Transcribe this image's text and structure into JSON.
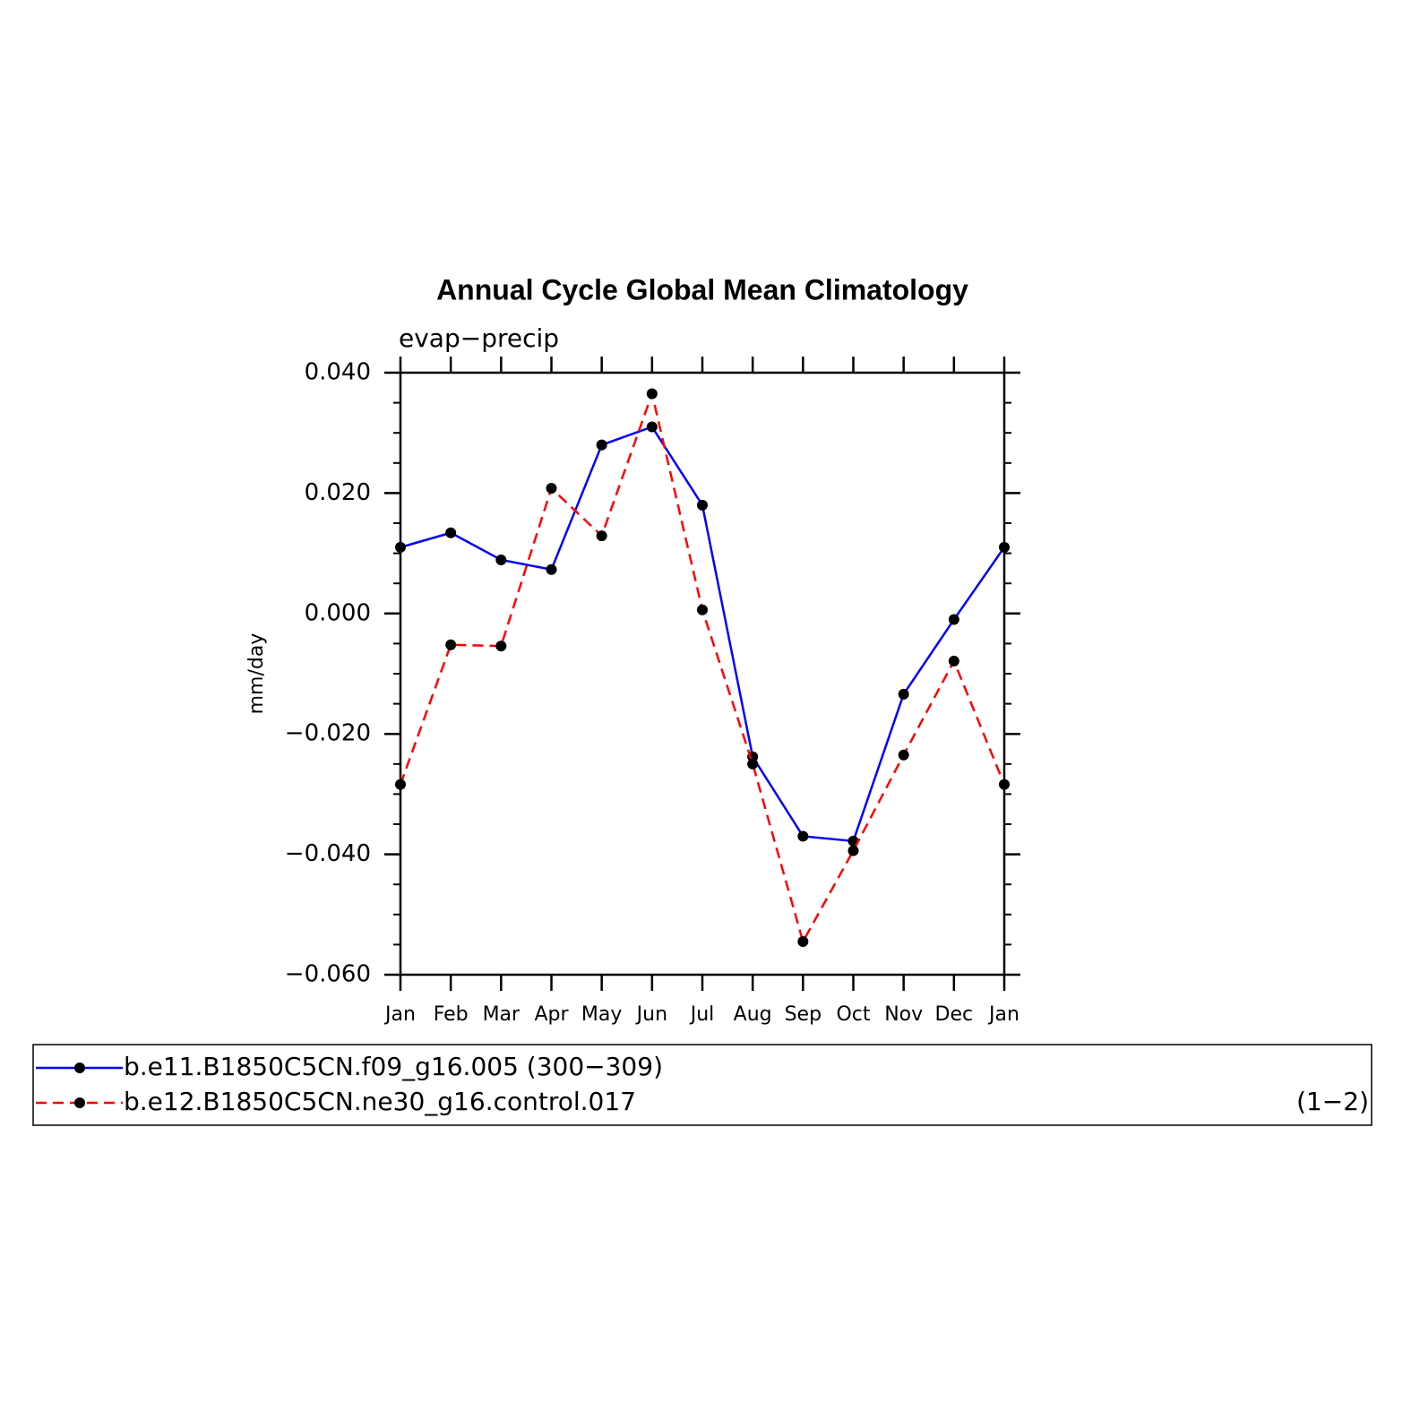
{
  "chart_data": {
    "type": "line",
    "title": "Annual Cycle Global Mean Climatology",
    "subtitle": "evap−precip",
    "y_label": "mm/day",
    "categories": [
      "Jan",
      "Feb",
      "Mar",
      "Apr",
      "May",
      "Jun",
      "Jul",
      "Aug",
      "Sep",
      "Oct",
      "Nov",
      "Dec",
      "Jan"
    ],
    "series": [
      {
        "name": "b.e11.B1850C5CN.f09_g16.005 (300−309)",
        "color": "#0000ff",
        "dash": "solid",
        "values": [
          0.011,
          0.0134,
          0.0089,
          0.0073,
          0.028,
          0.031,
          0.018,
          -0.0238,
          -0.037,
          -0.0378,
          -0.0134,
          -0.001,
          0.011
        ]
      },
      {
        "name": "b.e12.B1850C5CN.ne30_g16.control.017",
        "color": "#ff0000",
        "dash": "dashed",
        "values": [
          -0.0284,
          -0.0052,
          -0.0054,
          0.0208,
          0.0129,
          0.0365,
          0.0006,
          -0.025,
          -0.0545,
          -0.0394,
          -0.0235,
          -0.0079,
          -0.0284
        ]
      }
    ],
    "legend_note": "(1−2)",
    "ylim": [
      -0.06,
      0.04
    ],
    "yticks": [
      {
        "value": -0.06,
        "label": "−0.060"
      },
      {
        "value": -0.04,
        "label": "−0.040"
      },
      {
        "value": -0.02,
        "label": "−0.020"
      },
      {
        "value": 0,
        "label": "0.000"
      },
      {
        "value": 0.02,
        "label": "0.020"
      },
      {
        "value": 0.04,
        "label": "0.040"
      }
    ],
    "legend": "bottom"
  }
}
